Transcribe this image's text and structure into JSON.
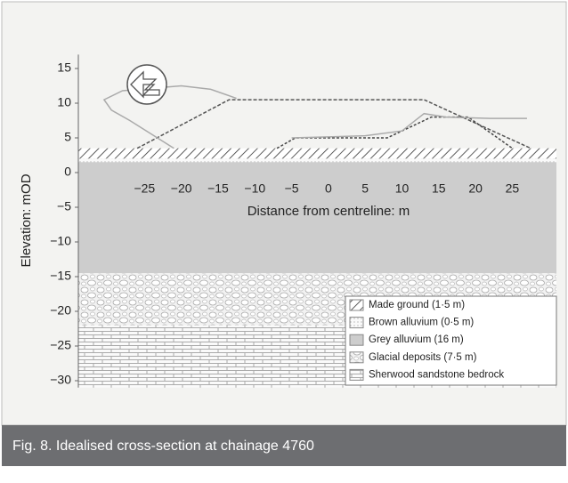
{
  "chart_data": {
    "type": "cross-section",
    "xlabel": "Distance from centreline: m",
    "ylabel": "Elevation: mOD",
    "xlim": [
      -34,
      31
    ],
    "ylim": [
      -31,
      17
    ],
    "xticks": [
      {
        "value": -25,
        "label": "−25"
      },
      {
        "value": -20,
        "label": "−20"
      },
      {
        "value": -15,
        "label": "−15"
      },
      {
        "value": -10,
        "label": "−10"
      },
      {
        "value": -5,
        "label": "−5"
      },
      0,
      5,
      10,
      15,
      20,
      25
    ],
    "yticks": [
      15,
      10,
      5,
      0,
      {
        "value": -5,
        "label": "−5"
      },
      {
        "value": -10,
        "label": "−10"
      },
      {
        "value": -15,
        "label": "−15"
      },
      {
        "value": -20,
        "label": "−20"
      },
      {
        "value": -25,
        "label": "−25"
      },
      {
        "value": -30,
        "label": "−30"
      }
    ],
    "layers": [
      {
        "name": "Made ground (1·5 m)",
        "top": 3.5,
        "bottom": 2,
        "fill": "hatch"
      },
      {
        "name": "Brown alluvium (0·5 m)",
        "top": 2,
        "bottom": 1.5,
        "fill": "dots"
      },
      {
        "name": "Grey alluvium (16 m)",
        "top": 1.5,
        "bottom": -14.5,
        "fill": "grey"
      },
      {
        "name": "Glacial deposits (7·5 m)",
        "top": -14.5,
        "bottom": -22,
        "fill": "pebble"
      },
      {
        "name": "Sherwood sandstone bedrock",
        "top": -22,
        "fill": "brick"
      }
    ],
    "series": [
      {
        "color": "#555555",
        "dash": "4 2",
        "x": [
          -26,
          -13.5,
          13,
          27.5
        ],
        "y": [
          3.5,
          10.5,
          10.5,
          3.5
        ]
      },
      {
        "color": "#444444",
        "dash": "3 2",
        "x": [
          -7,
          -4.5,
          8,
          14,
          19,
          25
        ],
        "y": [
          3.5,
          5,
          5,
          8,
          8,
          3.5
        ]
      },
      {
        "color": "#aaaaaa",
        "dash": "",
        "x": [
          -21,
          -24,
          -27,
          -29.5,
          -30.5,
          -28,
          -20,
          -16,
          -12.5
        ],
        "y": [
          3.5,
          5.5,
          7.5,
          9,
          10.5,
          11.8,
          12.5,
          12,
          10.7
        ]
      },
      {
        "color": "#aaaaaa",
        "dash": "",
        "x": [
          -5,
          5,
          10,
          13,
          16,
          22,
          27
        ],
        "y": [
          5,
          5.3,
          6,
          8.5,
          8,
          7.8,
          7.8
        ]
      }
    ]
  },
  "caption": "Fig. 8. Idealised cross-section at chainage 4760"
}
